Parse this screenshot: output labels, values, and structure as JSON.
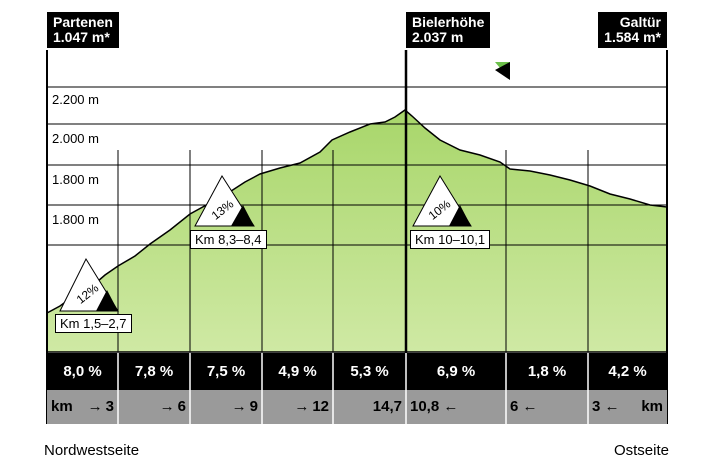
{
  "chart_data": {
    "type": "area",
    "title": "",
    "peaks": [
      {
        "name": "Partenen",
        "elevation": "1.047 m*"
      },
      {
        "name": "Bielerhöhe",
        "elevation": "2.037 m"
      },
      {
        "name": "Galtür",
        "elevation": "1.584 m*"
      }
    ],
    "y_tick_labels": [
      "2.200 m",
      "2.000 m",
      "1.800 m",
      "1.800 m"
    ],
    "gradients": [
      "8,0 %",
      "7,8 %",
      "7,5 %",
      "4,9 %",
      "5,3 %",
      "6,9 %",
      "1,8 %",
      "4,2 %"
    ],
    "km_labels": [
      {
        "prefix": "km",
        "arrow": "→",
        "value": "3"
      },
      {
        "prefix": "",
        "arrow": "→",
        "value": "6"
      },
      {
        "prefix": "",
        "arrow": "→",
        "value": "9"
      },
      {
        "prefix": "",
        "arrow": "→",
        "value": "12"
      },
      {
        "prefix": "",
        "arrow": "",
        "value": "14,7"
      },
      {
        "value": "10,8",
        "arrow": "←",
        "suffix": ""
      },
      {
        "value": "6",
        "arrow": "←",
        "suffix": ""
      },
      {
        "value": "3",
        "arrow": "←",
        "suffix": "km"
      }
    ],
    "climb_markers": [
      {
        "percent": "12%",
        "label": "Km 1,5–2,7"
      },
      {
        "percent": "13%",
        "label": "Km 8,3–8,4"
      },
      {
        "percent": "10%",
        "label": "Km 10–10,1"
      }
    ],
    "sides": {
      "left": "Nordwestseite",
      "right": "Ostseite"
    },
    "colors": {
      "fill": "#a8d66a",
      "fill_light": "#c9e79a",
      "bar": "#000000",
      "km_bar": "#9a9a9a",
      "flag": "#6cc04a"
    }
  }
}
